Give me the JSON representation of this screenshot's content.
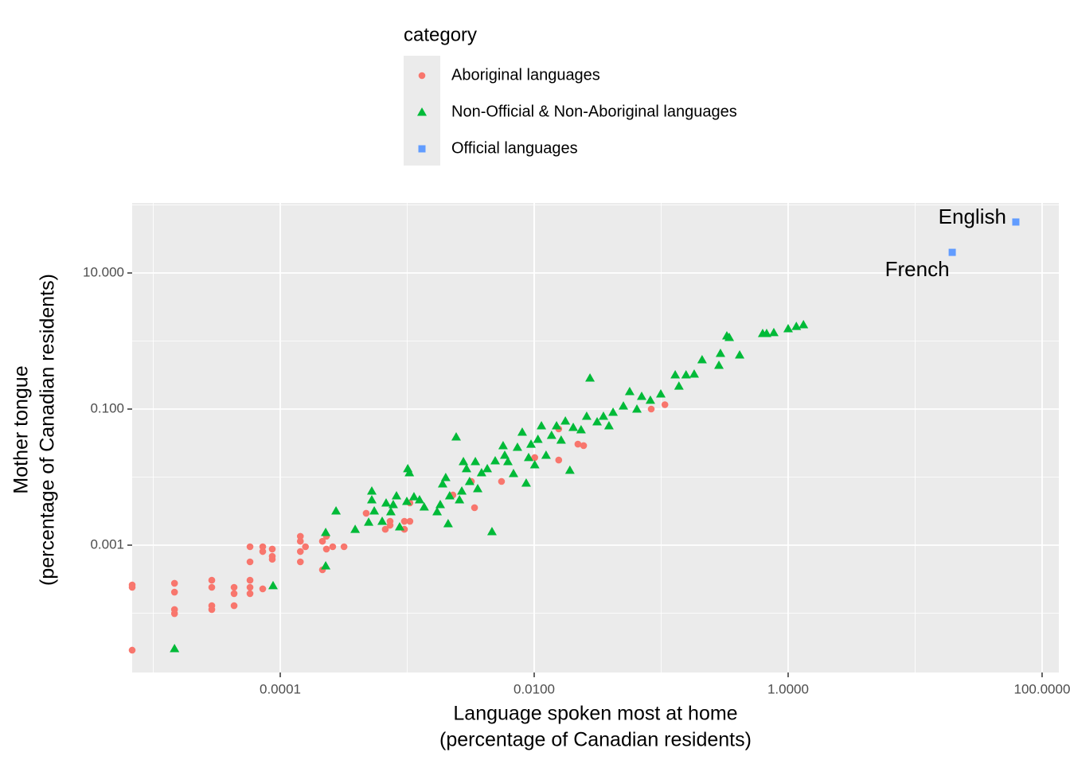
{
  "chart_data": {
    "type": "scatter",
    "xscale": "log",
    "yscale": "log",
    "xlabel": [
      "Language spoken most at home",
      "(percentage of Canadian residents)"
    ],
    "ylabel": [
      "Mother tongue",
      "(percentage of Canadian residents)"
    ],
    "legend_title": "category",
    "legend_position": "top",
    "grid": true,
    "xlim": [
      6.82e-06,
      135.5
    ],
    "ylim": [
      1.345e-05,
      107
    ],
    "xticks": [
      0.0001,
      {
        "value": 0.01,
        "label": "0.0100"
      },
      {
        "value": 1,
        "label": "1.0000"
      },
      {
        "value": 100,
        "label": "100.0000"
      }
    ],
    "yticks": [
      {
        "value": 0.001,
        "label": "0.001"
      },
      {
        "value": 0.1,
        "label": "0.100"
      },
      {
        "value": 10,
        "label": "10.000"
      }
    ],
    "x_minor_grid": [
      1e-05,
      0.001,
      0.1,
      10
    ],
    "y_minor_grid": [
      0.0001,
      0.01,
      1,
      100
    ],
    "series": [
      {
        "name": "Aboriginal languages",
        "color": "#F8766D",
        "shape": "circle",
        "x": [
          6.82e-06,
          6.82e-06,
          6.82e-06,
          1.47e-05,
          1.47e-05,
          1.47e-05,
          1.47e-05,
          2.89e-05,
          2.89e-05,
          2.89e-05,
          2.89e-05,
          4.33e-05,
          4.33e-05,
          4.33e-05,
          5.78e-05,
          5.78e-05,
          5.78e-05,
          5.78e-05,
          5.78e-05,
          7.28e-05,
          7.28e-05,
          7.28e-05,
          8.65e-05,
          8.65e-05,
          8.65e-05,
          0.000144,
          0.000144,
          0.000144,
          0.000144,
          0.000158,
          0.000215,
          0.000215,
          0.000231,
          0.000231,
          0.000259,
          0.000318,
          0.000475,
          0.000672,
          0.000733,
          0.000733,
          0.00095,
          0.00095,
          0.00105,
          0.00105,
          0.00229,
          0.0032,
          0.00339,
          0.00553,
          0.0101,
          0.0156,
          0.0156,
          0.0221,
          0.0245,
          0.0835,
          0.107
        ],
        "values": [
          0.00026,
          0.00024,
          2.86e-05,
          0.000275,
          0.000204,
          0.000113,
          9.86e-05,
          0.000305,
          0.00024,
          0.000129,
          0.000113,
          0.00024,
          0.000194,
          0.000129,
          0.000948,
          0.000568,
          0.000305,
          0.00024,
          0.000194,
          0.000948,
          0.000806,
          0.000228,
          0.000875,
          0.000686,
          0.00062,
          0.00135,
          0.00114,
          0.000806,
          0.000568,
          0.000948,
          0.00114,
          0.000434,
          0.00135,
          0.000875,
          0.000948,
          0.000948,
          0.00294,
          0.00171,
          0.00224,
          0.00196,
          0.00224,
          0.00171,
          0.00224,
          0.00417,
          0.00546,
          0.00863,
          0.00355,
          0.00863,
          0.0194,
          0.0178,
          0.051,
          0.0305,
          0.029,
          0.1,
          0.116
        ]
      },
      {
        "name": "Non-Official & Non-Aboriginal languages",
        "color": "#00BA38",
        "shape": "triangle",
        "x": [
          1.47e-05,
          8.78e-05,
          0.000228,
          0.000228,
          0.000275,
          0.000389,
          0.000497,
          0.000526,
          0.000526,
          0.00055,
          0.000635,
          0.000682,
          0.000743,
          0.000776,
          0.000823,
          0.000872,
          0.000993,
          0.00101,
          0.00104,
          0.00113,
          0.00125,
          0.00136,
          0.00172,
          0.00182,
          0.0019,
          0.00201,
          0.0021,
          0.00216,
          0.00243,
          0.00258,
          0.00269,
          0.00277,
          0.00293,
          0.0031,
          0.00344,
          0.00359,
          0.00385,
          0.00427,
          0.00465,
          0.00493,
          0.00569,
          0.00586,
          0.00621,
          0.00687,
          0.00738,
          0.00805,
          0.00865,
          0.00904,
          0.00944,
          0.0101,
          0.0107,
          0.0114,
          0.0124,
          0.0137,
          0.015,
          0.0163,
          0.0176,
          0.0191,
          0.0203,
          0.0234,
          0.0259,
          0.0275,
          0.0313,
          0.0351,
          0.0388,
          0.0418,
          0.0504,
          0.0565,
          0.0644,
          0.0702,
          0.0822,
          0.0993,
          0.129,
          0.138,
          0.157,
          0.182,
          0.21,
          0.285,
          0.293,
          0.329,
          0.344,
          0.415,
          0.63,
          0.677,
          0.771,
          1.0,
          1.16,
          1.32
        ],
        "values": [
          3.02e-05,
          0.000254,
          0.00154,
          0.000497,
          0.00318,
          0.00171,
          0.00218,
          0.00465,
          0.00624,
          0.00318,
          0.00224,
          0.00417,
          0.0031,
          0.00395,
          0.00531,
          0.00186,
          0.0044,
          0.0133,
          0.0116,
          0.00516,
          0.00465,
          0.00364,
          0.0031,
          0.00395,
          0.00796,
          0.00986,
          0.00207,
          0.00531,
          0.039,
          0.00465,
          0.00624,
          0.0169,
          0.0133,
          0.00863,
          0.0169,
          0.00676,
          0.0116,
          0.0133,
          0.00158,
          0.0174,
          0.029,
          0.021,
          0.0169,
          0.0113,
          0.0275,
          0.0458,
          0.00817,
          0.0194,
          0.0305,
          0.0152,
          0.036,
          0.0568,
          0.021,
          0.0411,
          0.0568,
          0.035,
          0.0668,
          0.0126,
          0.0538,
          0.0497,
          0.0785,
          0.286,
          0.065,
          0.0785,
          0.0568,
          0.0898,
          0.111,
          0.181,
          0.1,
          0.154,
          0.135,
          0.167,
          0.318,
          0.218,
          0.318,
          0.327,
          0.531,
          0.44,
          0.659,
          1.19,
          1.13,
          0.624,
          1.29,
          1.29,
          1.33,
          1.52,
          1.64,
          1.74
        ]
      },
      {
        "name": "Official languages",
        "color": "#619CFF",
        "shape": "square",
        "x": [
          62.1,
          19.6
        ],
        "values": [
          56.1,
          20.1
        ],
        "labels": [
          "English",
          "French"
        ]
      }
    ]
  }
}
